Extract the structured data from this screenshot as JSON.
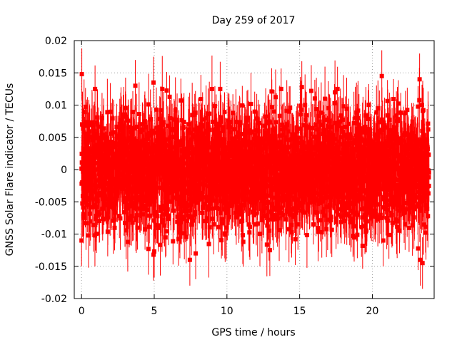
{
  "chart_data": {
    "type": "scatter",
    "title": "Day 259 of 2017",
    "xlabel": "GPS time / hours",
    "ylabel": "GNSS Solar Flare indicator / TECUs",
    "xlim": [
      -0.5,
      24.25
    ],
    "ylim": [
      -0.02,
      0.02
    ],
    "xticks": [
      0,
      5,
      10,
      15,
      20
    ],
    "xtick_labels": [
      "0",
      "5",
      "10",
      "15",
      "20"
    ],
    "yticks": [
      -0.02,
      -0.015,
      -0.01,
      -0.005,
      0,
      0.005,
      0.01,
      0.015,
      0.02
    ],
    "ytick_labels": [
      "-0.02",
      "-0.015",
      "-0.01",
      "-0.005",
      "0",
      "0.005",
      "0.01",
      "0.015",
      "0.02"
    ],
    "grid": true,
    "color": "#ff0000",
    "marker": "square",
    "error_bars": true,
    "x_range": [
      0,
      23.9
    ],
    "sample_interval_hours": 0.0083,
    "typical_spread": 0.005,
    "typical_error": 0.004,
    "notable_points": [
      {
        "x": 0.02,
        "y": 0.0148,
        "err": 0.004
      },
      {
        "x": 3.7,
        "y": 0.013,
        "err": 0.004
      },
      {
        "x": 4.95,
        "y": 0.0135,
        "err": 0.004
      },
      {
        "x": 15.15,
        "y": 0.0128,
        "err": 0.004
      },
      {
        "x": 15.8,
        "y": 0.0122,
        "err": 0.004
      },
      {
        "x": 20.65,
        "y": 0.0145,
        "err": 0.004
      },
      {
        "x": 23.25,
        "y": 0.014,
        "err": 0.004
      },
      {
        "x": 0.0,
        "y": -0.011,
        "err": 0.004
      },
      {
        "x": 4.6,
        "y": -0.0123,
        "err": 0.004
      },
      {
        "x": 4.95,
        "y": -0.0132,
        "err": 0.004
      },
      {
        "x": 5.0,
        "y": -0.0127,
        "err": 0.004
      },
      {
        "x": 7.45,
        "y": -0.014,
        "err": 0.004
      },
      {
        "x": 7.85,
        "y": -0.013,
        "err": 0.004
      },
      {
        "x": 12.95,
        "y": -0.0125,
        "err": 0.004
      },
      {
        "x": 14.7,
        "y": -0.0108,
        "err": 0.004
      },
      {
        "x": 23.3,
        "y": -0.014,
        "err": 0.004
      },
      {
        "x": 23.45,
        "y": -0.0145,
        "err": 0.004
      },
      {
        "x": 20.75,
        "y": -0.011,
        "err": 0.004
      }
    ]
  }
}
